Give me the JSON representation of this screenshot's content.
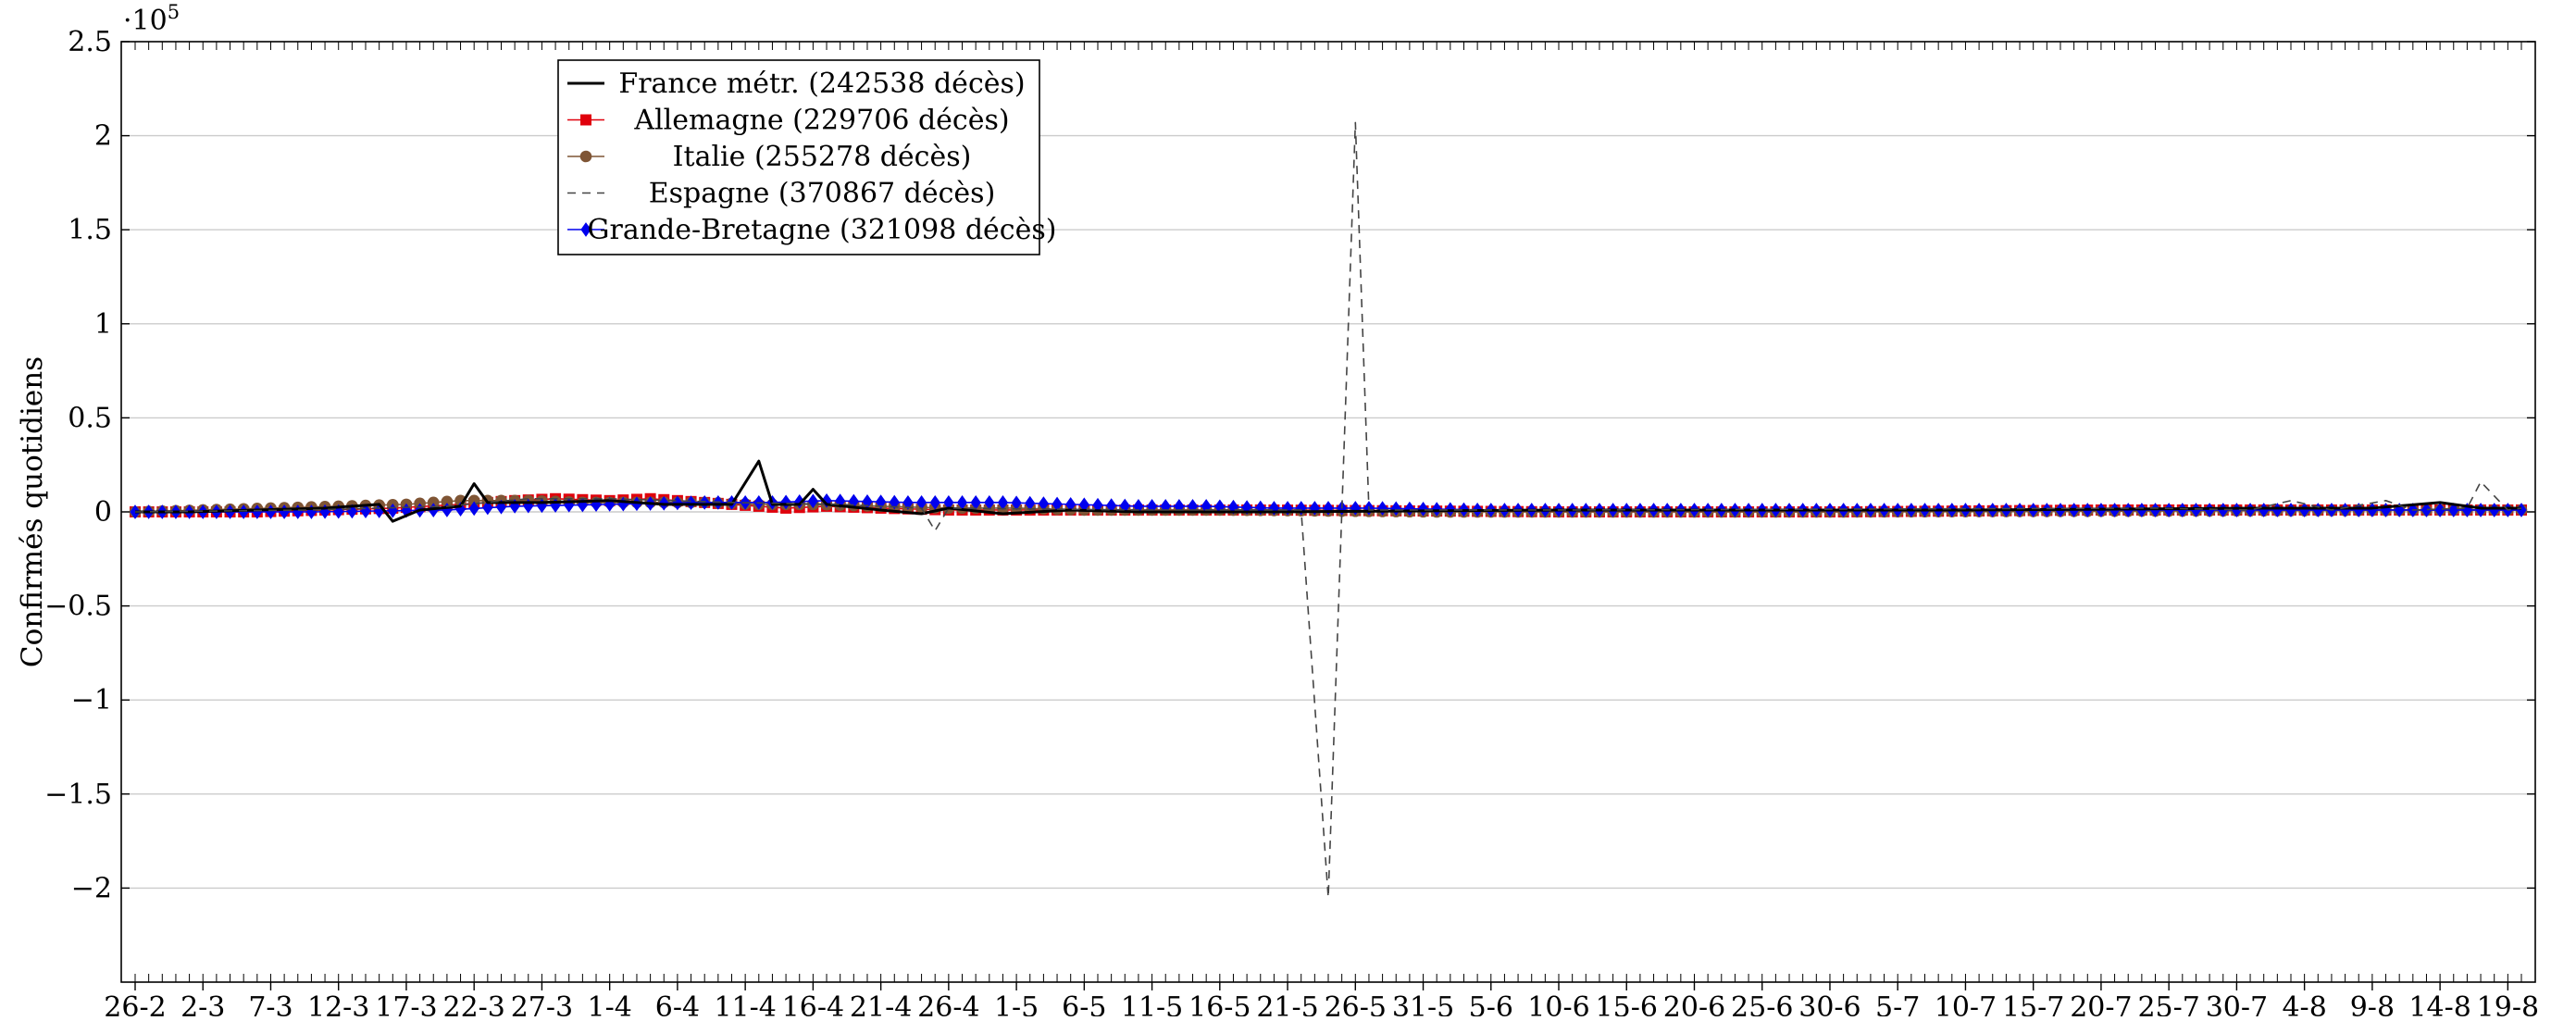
{
  "chart_data": {
    "type": "line",
    "title": "",
    "xlabel": "",
    "ylabel": "Confirmés quotidiens",
    "y_multiplier": "·10",
    "y_multiplier_exponent": "5",
    "ylim": [
      -2.5,
      2.5
    ],
    "yticks": [
      -2,
      -1.5,
      -1,
      -0.5,
      0,
      0.5,
      1,
      1.5,
      2,
      2.5
    ],
    "ytick_labels": [
      "−2",
      "−1.5",
      "−1",
      "−0.5",
      "0",
      "0.5",
      "1",
      "1.5",
      "2",
      "2.5"
    ],
    "x_start": "2020-02-26",
    "x_end": "2020-08-20",
    "xtick_dates": [
      "2020-02-26",
      "2020-03-02",
      "2020-03-07",
      "2020-03-12",
      "2020-03-17",
      "2020-03-22",
      "2020-03-27",
      "2020-04-01",
      "2020-04-06",
      "2020-04-11",
      "2020-04-16",
      "2020-04-21",
      "2020-04-26",
      "2020-05-01",
      "2020-05-06",
      "2020-05-11",
      "2020-05-16",
      "2020-05-21",
      "2020-05-26",
      "2020-05-31",
      "2020-06-05",
      "2020-06-10",
      "2020-06-15",
      "2020-06-20",
      "2020-06-25",
      "2020-06-30",
      "2020-07-05",
      "2020-07-10",
      "2020-07-15",
      "2020-07-20",
      "2020-07-25",
      "2020-07-30",
      "2020-08-04",
      "2020-08-09",
      "2020-08-14",
      "2020-08-19"
    ],
    "xtick_labels": [
      "26-2",
      "2-3",
      "7-3",
      "12-3",
      "17-3",
      "22-3",
      "27-3",
      "1-4",
      "6-4",
      "11-4",
      "16-4",
      "21-4",
      "26-4",
      "1-5",
      "6-5",
      "11-5",
      "16-5",
      "21-5",
      "26-5",
      "31-5",
      "5-6",
      "10-6",
      "15-6",
      "20-6",
      "25-6",
      "30-6",
      "5-7",
      "10-7",
      "15-7",
      "20-7",
      "25-7",
      "30-7",
      "4-8",
      "9-8",
      "14-8",
      "19-8"
    ],
    "grid": "horizontal",
    "legend_position": "top-left",
    "series": [
      {
        "name": "France métr. (242538 décès)",
        "color": "#000000",
        "style": "solid",
        "marker": "none",
        "points": [
          [
            "2020-02-26",
            0.0
          ],
          [
            "2020-03-01",
            0.0
          ],
          [
            "2020-03-06",
            0.01
          ],
          [
            "2020-03-11",
            0.02
          ],
          [
            "2020-03-15",
            0.04
          ],
          [
            "2020-03-16",
            -0.05
          ],
          [
            "2020-03-18",
            0.01
          ],
          [
            "2020-03-21",
            0.03
          ],
          [
            "2020-03-22",
            0.15
          ],
          [
            "2020-03-23",
            0.05
          ],
          [
            "2020-03-27",
            0.05
          ],
          [
            "2020-04-01",
            0.06
          ],
          [
            "2020-04-05",
            0.04
          ],
          [
            "2020-04-10",
            0.04
          ],
          [
            "2020-04-12",
            0.27
          ],
          [
            "2020-04-13",
            0.04
          ],
          [
            "2020-04-15",
            0.04
          ],
          [
            "2020-04-16",
            0.12
          ],
          [
            "2020-04-17",
            0.04
          ],
          [
            "2020-04-21",
            0.01
          ],
          [
            "2020-04-24",
            -0.01
          ],
          [
            "2020-04-26",
            0.02
          ],
          [
            "2020-04-30",
            -0.01
          ],
          [
            "2020-05-05",
            0.01
          ],
          [
            "2020-05-10",
            0.0
          ],
          [
            "2020-05-20",
            0.0
          ],
          [
            "2020-06-10",
            0.01
          ],
          [
            "2020-07-10",
            0.01
          ],
          [
            "2020-08-01",
            0.02
          ],
          [
            "2020-08-09",
            0.02
          ],
          [
            "2020-08-14",
            0.05
          ],
          [
            "2020-08-17",
            0.02
          ],
          [
            "2020-08-20",
            0.02
          ]
        ]
      },
      {
        "name": "Allemagne (229706 décès)",
        "color": "#e0000c",
        "style": "solid",
        "marker": "square",
        "points": [
          [
            "2020-02-26",
            0.0
          ],
          [
            "2020-03-06",
            0.0
          ],
          [
            "2020-03-11",
            0.01
          ],
          [
            "2020-03-16",
            0.02
          ],
          [
            "2020-03-21",
            0.04
          ],
          [
            "2020-03-25",
            0.06
          ],
          [
            "2020-03-28",
            0.07
          ],
          [
            "2020-04-01",
            0.06
          ],
          [
            "2020-04-04",
            0.07
          ],
          [
            "2020-04-08",
            0.05
          ],
          [
            "2020-04-12",
            0.03
          ],
          [
            "2020-04-14",
            0.02
          ],
          [
            "2020-04-17",
            0.03
          ],
          [
            "2020-04-21",
            0.02
          ],
          [
            "2020-04-26",
            0.01
          ],
          [
            "2020-05-01",
            0.01
          ],
          [
            "2020-05-10",
            0.01
          ],
          [
            "2020-05-20",
            0.01
          ],
          [
            "2020-06-10",
            0.0
          ],
          [
            "2020-07-01",
            0.0
          ],
          [
            "2020-07-20",
            0.01
          ],
          [
            "2020-08-01",
            0.01
          ],
          [
            "2020-08-10",
            0.01
          ],
          [
            "2020-08-20",
            0.01
          ]
        ]
      },
      {
        "name": "Italie (255278 décès)",
        "color": "#7f5535",
        "style": "solid",
        "marker": "circle",
        "points": [
          [
            "2020-02-26",
            0.0
          ],
          [
            "2020-03-02",
            0.01
          ],
          [
            "2020-03-07",
            0.02
          ],
          [
            "2020-03-12",
            0.03
          ],
          [
            "2020-03-17",
            0.04
          ],
          [
            "2020-03-21",
            0.06
          ],
          [
            "2020-03-26",
            0.06
          ],
          [
            "2020-03-30",
            0.05
          ],
          [
            "2020-04-04",
            0.05
          ],
          [
            "2020-04-08",
            0.05
          ],
          [
            "2020-04-12",
            0.04
          ],
          [
            "2020-04-16",
            0.04
          ],
          [
            "2020-04-21",
            0.03
          ],
          [
            "2020-04-26",
            0.02
          ],
          [
            "2020-05-01",
            0.02
          ],
          [
            "2020-05-06",
            0.01
          ],
          [
            "2020-05-16",
            0.01
          ],
          [
            "2020-06-01",
            0.0
          ],
          [
            "2020-07-01",
            0.0
          ],
          [
            "2020-08-20",
            0.01
          ]
        ]
      },
      {
        "name": "Espagne (370867 décès)",
        "color": "#444444",
        "style": "dashed",
        "marker": "none",
        "points": [
          [
            "2020-02-26",
            0.0
          ],
          [
            "2020-03-10",
            0.01
          ],
          [
            "2020-03-20",
            0.03
          ],
          [
            "2020-03-26",
            0.07
          ],
          [
            "2020-04-01",
            0.07
          ],
          [
            "2020-04-10",
            0.05
          ],
          [
            "2020-04-18",
            0.04
          ],
          [
            "2020-04-24",
            0.02
          ],
          [
            "2020-04-25",
            -0.1
          ],
          [
            "2020-04-26",
            0.02
          ],
          [
            "2020-05-10",
            0.01
          ],
          [
            "2020-05-22",
            0.01
          ],
          [
            "2020-05-24",
            -2.05
          ],
          [
            "2020-05-25",
            0.0
          ],
          [
            "2020-05-26",
            2.07
          ],
          [
            "2020-05-27",
            0.01
          ],
          [
            "2020-06-10",
            0.01
          ],
          [
            "2020-07-24",
            0.02
          ],
          [
            "2020-07-31",
            0.01
          ],
          [
            "2020-08-03",
            0.06
          ],
          [
            "2020-08-06",
            0.01
          ],
          [
            "2020-08-10",
            0.06
          ],
          [
            "2020-08-12",
            0.01
          ],
          [
            "2020-08-16",
            0.02
          ],
          [
            "2020-08-17",
            0.16
          ],
          [
            "2020-08-19",
            0.01
          ],
          [
            "2020-08-20",
            0.02
          ]
        ]
      },
      {
        "name": "Grande-Bretagne (321098 décès)",
        "color": "#0000ee",
        "style": "solid",
        "marker": "diamond",
        "points": [
          [
            "2020-02-26",
            0.0
          ],
          [
            "2020-03-10",
            0.0
          ],
          [
            "2020-03-20",
            0.01
          ],
          [
            "2020-03-25",
            0.03
          ],
          [
            "2020-04-01",
            0.04
          ],
          [
            "2020-04-08",
            0.05
          ],
          [
            "2020-04-13",
            0.05
          ],
          [
            "2020-04-17",
            0.06
          ],
          [
            "2020-04-23",
            0.05
          ],
          [
            "2020-04-30",
            0.05
          ],
          [
            "2020-05-05",
            0.04
          ],
          [
            "2020-05-10",
            0.03
          ],
          [
            "2020-05-15",
            0.03
          ],
          [
            "2020-05-20",
            0.02
          ],
          [
            "2020-05-27",
            0.02
          ],
          [
            "2020-06-05",
            0.01
          ],
          [
            "2020-06-15",
            0.01
          ],
          [
            "2020-07-01",
            0.01
          ],
          [
            "2020-07-20",
            0.01
          ],
          [
            "2020-08-20",
            0.01
          ]
        ]
      }
    ]
  }
}
